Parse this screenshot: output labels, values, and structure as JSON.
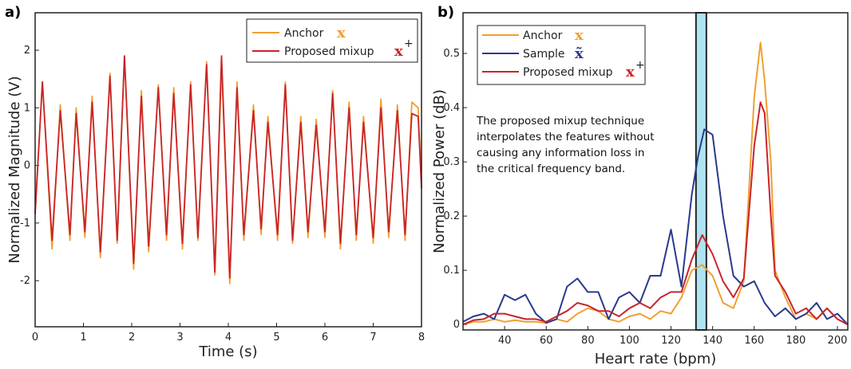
{
  "colors": {
    "anchor": "#f0a030",
    "mixup": "#c8252c",
    "sample": "#2a3a8c",
    "band": "#aee4f2"
  },
  "chart_data": [
    {
      "type": "line",
      "panel_label": "a)",
      "xlabel": "Time (s)",
      "ylabel": "Normalized Magnitude (V)",
      "xlim": [
        0,
        8
      ],
      "ylim": [
        -2.8,
        2.65
      ],
      "xticks": [
        0,
        1,
        2,
        3,
        4,
        5,
        6,
        7,
        8
      ],
      "yticks": [
        -2,
        -1,
        0,
        1,
        2
      ],
      "legend": {
        "position": "top-right",
        "entries": [
          {
            "label": "Anchor",
            "symbol": "x",
            "color": "#f0a030"
          },
          {
            "label": "Proposed mixup",
            "symbol": "x",
            "superscript": "+",
            "color": "#c8252c"
          }
        ]
      },
      "series": [
        {
          "name": "Anchor",
          "color": "#f0a030",
          "x": [
            0.0,
            0.15,
            0.35,
            0.52,
            0.72,
            0.85,
            1.03,
            1.18,
            1.35,
            1.55,
            1.7,
            1.85,
            2.04,
            2.2,
            2.35,
            2.55,
            2.72,
            2.87,
            3.05,
            3.22,
            3.37,
            3.55,
            3.72,
            3.86,
            4.03,
            4.18,
            4.32,
            4.52,
            4.68,
            4.82,
            5.02,
            5.18,
            5.33,
            5.5,
            5.65,
            5.82,
            6.0,
            6.16,
            6.32,
            6.5,
            6.65,
            6.8,
            7.0,
            7.16,
            7.32,
            7.5,
            7.66,
            7.8,
            7.93,
            8.0
          ],
          "y": [
            -0.8,
            1.45,
            -1.45,
            1.05,
            -1.3,
            1.0,
            -1.25,
            1.2,
            -1.6,
            1.6,
            -1.35,
            1.9,
            -1.8,
            1.3,
            -1.5,
            1.4,
            -1.3,
            1.35,
            -1.45,
            1.45,
            -1.3,
            1.8,
            -1.9,
            1.75,
            -2.05,
            1.45,
            -1.3,
            1.05,
            -1.2,
            0.85,
            -1.3,
            1.45,
            -1.35,
            0.85,
            -1.25,
            0.8,
            -1.25,
            1.3,
            -1.45,
            1.1,
            -1.3,
            0.85,
            -1.35,
            1.15,
            -1.25,
            1.05,
            -1.3,
            1.1,
            1.0,
            -0.3
          ]
        },
        {
          "name": "Proposed mixup",
          "color": "#c8252c",
          "x": [
            0.0,
            0.15,
            0.35,
            0.52,
            0.72,
            0.85,
            1.03,
            1.18,
            1.35,
            1.55,
            1.7,
            1.85,
            2.04,
            2.2,
            2.35,
            2.55,
            2.72,
            2.87,
            3.05,
            3.22,
            3.37,
            3.55,
            3.72,
            3.86,
            4.03,
            4.18,
            4.32,
            4.52,
            4.68,
            4.82,
            5.02,
            5.18,
            5.33,
            5.5,
            5.65,
            5.82,
            6.0,
            6.16,
            6.32,
            6.5,
            6.65,
            6.8,
            7.0,
            7.16,
            7.32,
            7.5,
            7.66,
            7.8,
            7.93,
            8.0
          ],
          "y": [
            -0.85,
            1.45,
            -1.3,
            0.95,
            -1.2,
            0.9,
            -1.15,
            1.1,
            -1.5,
            1.55,
            -1.3,
            1.9,
            -1.7,
            1.2,
            -1.4,
            1.35,
            -1.2,
            1.25,
            -1.35,
            1.4,
            -1.25,
            1.75,
            -1.85,
            1.9,
            -1.95,
            1.35,
            -1.2,
            0.95,
            -1.1,
            0.75,
            -1.2,
            1.4,
            -1.3,
            0.75,
            -1.15,
            0.7,
            -1.15,
            1.25,
            -1.35,
            1.0,
            -1.2,
            0.75,
            -1.25,
            1.0,
            -1.15,
            0.95,
            -1.2,
            0.9,
            0.85,
            -0.4
          ]
        }
      ]
    },
    {
      "type": "line",
      "panel_label": "b)",
      "xlabel": "Heart rate (bpm)",
      "ylabel": "Normalized Power (dB)",
      "xlim": [
        20,
        205
      ],
      "ylim": [
        -0.01,
        0.575
      ],
      "xticks": [
        40,
        60,
        80,
        100,
        120,
        140,
        160,
        180,
        200
      ],
      "yticks": [
        0,
        0.1,
        0.2,
        0.3,
        0.4,
        0.5
      ],
      "ytick_labels": [
        "0",
        "0.1",
        "0.2",
        "0.3",
        "0.4",
        "0.5"
      ],
      "highlight_band": [
        132,
        137
      ],
      "annotation": [
        "The proposed mixup technique",
        "interpolates the features without",
        "causing any information loss in",
        "the critical frequency band."
      ],
      "legend": {
        "position": "top-left",
        "entries": [
          {
            "label": "Anchor",
            "symbol": "x",
            "color": "#f0a030"
          },
          {
            "label": "Sample",
            "symbol": "x̃",
            "color": "#2a3a8c"
          },
          {
            "label": "Proposed mixup",
            "symbol": "x",
            "superscript": "+",
            "color": "#c8252c"
          }
        ]
      },
      "series": [
        {
          "name": "Anchor",
          "color": "#f0a030",
          "x": [
            20,
            25,
            30,
            35,
            40,
            45,
            50,
            55,
            60,
            65,
            70,
            75,
            80,
            85,
            90,
            95,
            100,
            105,
            110,
            115,
            120,
            125,
            130,
            135,
            140,
            145,
            150,
            155,
            160,
            163,
            165,
            168,
            170,
            175,
            180,
            185,
            190,
            195,
            200,
            205
          ],
          "y": [
            0,
            0.005,
            0.005,
            0.01,
            0.005,
            0.008,
            0.005,
            0.005,
            0.003,
            0.01,
            0.005,
            0.02,
            0.03,
            0.025,
            0.01,
            0.005,
            0.015,
            0.02,
            0.01,
            0.025,
            0.02,
            0.05,
            0.1,
            0.11,
            0.09,
            0.04,
            0.03,
            0.08,
            0.42,
            0.52,
            0.45,
            0.3,
            0.1,
            0.05,
            0.01,
            0.02,
            0.01,
            0.03,
            0.01,
            0
          ]
        },
        {
          "name": "Sample",
          "color": "#2a3a8c",
          "x": [
            20,
            25,
            30,
            35,
            40,
            45,
            50,
            55,
            60,
            65,
            70,
            75,
            80,
            85,
            90,
            95,
            100,
            105,
            110,
            115,
            120,
            125,
            130,
            133,
            136,
            140,
            145,
            150,
            155,
            160,
            165,
            170,
            175,
            180,
            185,
            190,
            195,
            200,
            205
          ],
          "y": [
            0.005,
            0.015,
            0.02,
            0.01,
            0.055,
            0.045,
            0.055,
            0.02,
            0.003,
            0.01,
            0.07,
            0.085,
            0.06,
            0.06,
            0.01,
            0.05,
            0.06,
            0.04,
            0.09,
            0.09,
            0.175,
            0.07,
            0.24,
            0.31,
            0.36,
            0.35,
            0.2,
            0.09,
            0.07,
            0.08,
            0.04,
            0.015,
            0.03,
            0.01,
            0.02,
            0.04,
            0.01,
            0.02,
            0
          ]
        },
        {
          "name": "Proposed mixup",
          "color": "#c8252c",
          "x": [
            20,
            25,
            30,
            35,
            40,
            45,
            50,
            55,
            60,
            65,
            70,
            75,
            80,
            85,
            90,
            95,
            100,
            105,
            110,
            115,
            120,
            125,
            130,
            135,
            140,
            145,
            150,
            155,
            160,
            163,
            165,
            168,
            170,
            175,
            180,
            185,
            190,
            195,
            200,
            205
          ],
          "y": [
            0,
            0.008,
            0.01,
            0.02,
            0.02,
            0.015,
            0.01,
            0.01,
            0.005,
            0.015,
            0.025,
            0.04,
            0.035,
            0.025,
            0.025,
            0.015,
            0.03,
            0.04,
            0.03,
            0.05,
            0.06,
            0.06,
            0.12,
            0.165,
            0.13,
            0.08,
            0.05,
            0.085,
            0.33,
            0.41,
            0.39,
            0.2,
            0.09,
            0.06,
            0.02,
            0.03,
            0.01,
            0.03,
            0.01,
            0
          ]
        }
      ]
    }
  ]
}
